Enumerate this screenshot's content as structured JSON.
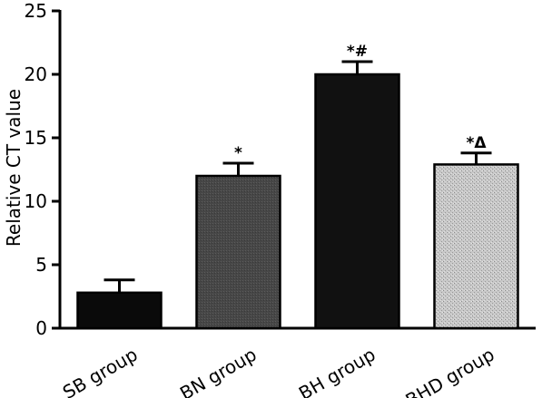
{
  "chart_data": {
    "type": "bar",
    "title": "",
    "xlabel": "",
    "ylabel": "Relative CT value",
    "ylim": [
      0,
      25
    ],
    "yticks": [
      0,
      5,
      10,
      15,
      20,
      25
    ],
    "categories": [
      "SB group",
      "BN group",
      "BH group",
      "BHD group"
    ],
    "values": [
      2.8,
      12.0,
      20.0,
      12.9
    ],
    "errors": [
      1.0,
      1.0,
      1.0,
      0.9
    ],
    "annotations": [
      "",
      "*",
      "*#",
      "*Δ"
    ],
    "fill_colors": [
      "#0a0a0a",
      "#4a4a4a",
      "#111111",
      "#c4c4c4"
    ],
    "grid": false
  }
}
